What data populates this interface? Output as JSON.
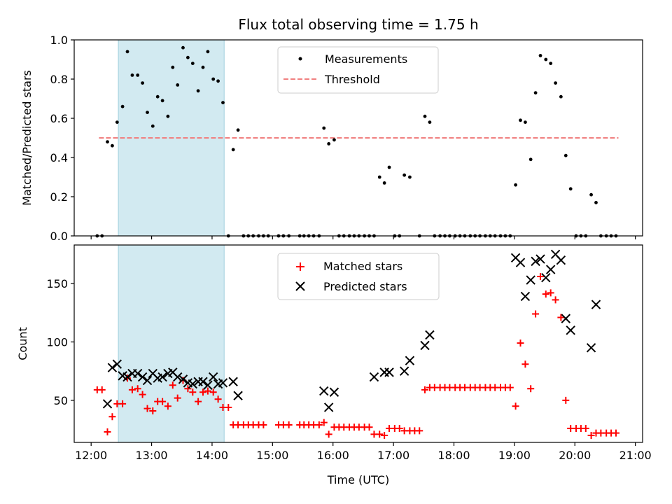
{
  "chart_data": [
    {
      "type": "scatter",
      "title": "Flux total observing time = 1.75 h",
      "ylabel": "Matched/Predicted stars",
      "xlabel": "",
      "x_unit": "hours (UTC)",
      "xlim": [
        11.72,
        21.12
      ],
      "ylim": [
        0,
        1.0
      ],
      "yticks": [
        "0.0",
        "0.2",
        "0.4",
        "0.6",
        "0.8",
        "1.0"
      ],
      "ytick_values": [
        0,
        0.2,
        0.4,
        0.6,
        0.8,
        1.0
      ],
      "xtick_values": [
        12,
        13,
        14,
        15,
        16,
        17,
        18,
        19,
        20,
        21
      ],
      "highlight_span": [
        12.45,
        14.2
      ],
      "highlight_color": "#add8e6",
      "legend": {
        "placement": "upper-center",
        "entries": [
          "Measurements",
          "Threshold"
        ]
      },
      "threshold": {
        "name": "Threshold",
        "value": 0.5,
        "x_range": [
          12.13,
          20.72
        ],
        "color": "#f08080",
        "style": "dashed"
      },
      "series": [
        {
          "name": "Measurements",
          "color": "#000000",
          "marker": "dot",
          "points": [
            [
              12.1,
              0
            ],
            [
              12.18,
              0
            ],
            [
              12.27,
              0.48
            ],
            [
              12.35,
              0.46
            ],
            [
              12.43,
              0.58
            ],
            [
              12.52,
              0.66
            ],
            [
              12.6,
              0.94
            ],
            [
              12.68,
              0.82
            ],
            [
              12.77,
              0.82
            ],
            [
              12.85,
              0.78
            ],
            [
              12.93,
              0.63
            ],
            [
              13.02,
              0.56
            ],
            [
              13.1,
              0.71
            ],
            [
              13.18,
              0.69
            ],
            [
              13.27,
              0.61
            ],
            [
              13.35,
              0.86
            ],
            [
              13.43,
              0.77
            ],
            [
              13.52,
              0.96
            ],
            [
              13.6,
              0.91
            ],
            [
              13.68,
              0.88
            ],
            [
              13.77,
              0.74
            ],
            [
              13.85,
              0.86
            ],
            [
              13.93,
              0.94
            ],
            [
              14.02,
              0.8
            ],
            [
              14.1,
              0.79
            ],
            [
              14.18,
              0.68
            ],
            [
              14.27,
              0
            ],
            [
              14.35,
              0.44
            ],
            [
              14.43,
              0.54
            ],
            [
              14.52,
              0
            ],
            [
              14.6,
              0
            ],
            [
              14.68,
              0
            ],
            [
              14.77,
              0
            ],
            [
              14.85,
              0
            ],
            [
              14.93,
              0
            ],
            [
              15.1,
              0
            ],
            [
              15.18,
              0
            ],
            [
              15.27,
              0
            ],
            [
              15.45,
              0
            ],
            [
              15.52,
              0
            ],
            [
              15.6,
              0
            ],
            [
              15.68,
              0
            ],
            [
              15.77,
              0
            ],
            [
              15.85,
              0.55
            ],
            [
              15.93,
              0.47
            ],
            [
              16.02,
              0.49
            ],
            [
              16.1,
              0
            ],
            [
              16.18,
              0
            ],
            [
              16.27,
              0
            ],
            [
              16.35,
              0
            ],
            [
              16.43,
              0
            ],
            [
              16.52,
              0
            ],
            [
              16.6,
              0
            ],
            [
              16.68,
              0
            ],
            [
              16.77,
              0.3
            ],
            [
              16.85,
              0.27
            ],
            [
              16.93,
              0.35
            ],
            [
              17.02,
              0
            ],
            [
              17.1,
              0
            ],
            [
              17.18,
              0.31
            ],
            [
              17.27,
              0.3
            ],
            [
              17.43,
              0
            ],
            [
              17.52,
              0.61
            ],
            [
              17.6,
              0.58
            ],
            [
              17.68,
              0
            ],
            [
              17.77,
              0
            ],
            [
              17.85,
              0
            ],
            [
              17.93,
              0
            ],
            [
              18.02,
              0
            ],
            [
              18.1,
              0
            ],
            [
              18.18,
              0
            ],
            [
              18.27,
              0
            ],
            [
              18.35,
              0
            ],
            [
              18.43,
              0
            ],
            [
              18.52,
              0
            ],
            [
              18.6,
              0
            ],
            [
              18.68,
              0
            ],
            [
              18.77,
              0
            ],
            [
              18.85,
              0
            ],
            [
              18.93,
              0
            ],
            [
              19.02,
              0.26
            ],
            [
              19.1,
              0.59
            ],
            [
              19.18,
              0.58
            ],
            [
              19.27,
              0.39
            ],
            [
              19.35,
              0.73
            ],
            [
              19.43,
              0.92
            ],
            [
              19.52,
              0.9
            ],
            [
              19.6,
              0.88
            ],
            [
              19.68,
              0.78
            ],
            [
              19.77,
              0.71
            ],
            [
              19.85,
              0.41
            ],
            [
              19.93,
              0.24
            ],
            [
              20.02,
              0
            ],
            [
              20.1,
              0
            ],
            [
              20.18,
              0
            ],
            [
              20.27,
              0.21
            ],
            [
              20.35,
              0.17
            ],
            [
              20.43,
              0
            ],
            [
              20.52,
              0
            ],
            [
              20.6,
              0
            ],
            [
              20.68,
              0
            ]
          ]
        }
      ]
    },
    {
      "type": "scatter",
      "title": "",
      "ylabel": "Count",
      "xlabel": "Time (UTC)",
      "x_unit": "hours (UTC)",
      "xlim": [
        11.72,
        21.12
      ],
      "ylim": [
        14,
        183
      ],
      "yticks": [
        "50",
        "100",
        "150"
      ],
      "ytick_values": [
        50,
        100,
        150
      ],
      "xticks": [
        "12:00",
        "13:00",
        "14:00",
        "15:00",
        "16:00",
        "17:00",
        "18:00",
        "19:00",
        "20:00",
        "21:00"
      ],
      "xtick_values": [
        12,
        13,
        14,
        15,
        16,
        17,
        18,
        19,
        20,
        21
      ],
      "highlight_span": [
        12.45,
        14.2
      ],
      "highlight_color": "#add8e6",
      "legend": {
        "placement": "upper-center",
        "entries": [
          "Matched stars",
          "Predicted stars"
        ]
      },
      "series": [
        {
          "name": "Matched stars",
          "color": "#ff0000",
          "marker": "plus",
          "points": [
            [
              12.1,
              59
            ],
            [
              12.18,
              59
            ],
            [
              12.27,
              23
            ],
            [
              12.35,
              36
            ],
            [
              12.43,
              47
            ],
            [
              12.52,
              47
            ],
            [
              12.6,
              69
            ],
            [
              12.68,
              59
            ],
            [
              12.77,
              60
            ],
            [
              12.85,
              55
            ],
            [
              12.93,
              43
            ],
            [
              13.02,
              41
            ],
            [
              13.1,
              49
            ],
            [
              13.18,
              49
            ],
            [
              13.27,
              45
            ],
            [
              13.35,
              63
            ],
            [
              13.43,
              52
            ],
            [
              13.52,
              67
            ],
            [
              13.6,
              60
            ],
            [
              13.68,
              57
            ],
            [
              13.77,
              49
            ],
            [
              13.85,
              57
            ],
            [
              13.93,
              58
            ],
            [
              14.02,
              57
            ],
            [
              14.1,
              51
            ],
            [
              14.18,
              44
            ],
            [
              14.27,
              44
            ],
            [
              14.35,
              29
            ],
            [
              14.43,
              29
            ],
            [
              14.52,
              29
            ],
            [
              14.6,
              29
            ],
            [
              14.68,
              29
            ],
            [
              14.77,
              29
            ],
            [
              14.85,
              29
            ],
            [
              15.1,
              29
            ],
            [
              15.18,
              29
            ],
            [
              15.27,
              29
            ],
            [
              15.45,
              29
            ],
            [
              15.52,
              29
            ],
            [
              15.6,
              29
            ],
            [
              15.68,
              29
            ],
            [
              15.77,
              29
            ],
            [
              15.85,
              31
            ],
            [
              15.93,
              21
            ],
            [
              16.02,
              27
            ],
            [
              16.1,
              27
            ],
            [
              16.18,
              27
            ],
            [
              16.27,
              27
            ],
            [
              16.35,
              27
            ],
            [
              16.43,
              27
            ],
            [
              16.52,
              27
            ],
            [
              16.6,
              27
            ],
            [
              16.68,
              21
            ],
            [
              16.77,
              21
            ],
            [
              16.85,
              20
            ],
            [
              16.93,
              26
            ],
            [
              17.02,
              26
            ],
            [
              17.1,
              26
            ],
            [
              17.18,
              24
            ],
            [
              17.27,
              24
            ],
            [
              17.35,
              24
            ],
            [
              17.43,
              24
            ],
            [
              17.52,
              59
            ],
            [
              17.6,
              61
            ],
            [
              17.68,
              61
            ],
            [
              17.77,
              61
            ],
            [
              17.85,
              61
            ],
            [
              17.93,
              61
            ],
            [
              18.02,
              61
            ],
            [
              18.1,
              61
            ],
            [
              18.18,
              61
            ],
            [
              18.27,
              61
            ],
            [
              18.35,
              61
            ],
            [
              18.43,
              61
            ],
            [
              18.52,
              61
            ],
            [
              18.6,
              61
            ],
            [
              18.68,
              61
            ],
            [
              18.77,
              61
            ],
            [
              18.85,
              61
            ],
            [
              18.93,
              61
            ],
            [
              19.02,
              45
            ],
            [
              19.1,
              99
            ],
            [
              19.18,
              81
            ],
            [
              19.27,
              60
            ],
            [
              19.35,
              124
            ],
            [
              19.43,
              156
            ],
            [
              19.52,
              141
            ],
            [
              19.6,
              142
            ],
            [
              19.68,
              136
            ],
            [
              19.77,
              121
            ],
            [
              19.85,
              50
            ],
            [
              19.93,
              26
            ],
            [
              20.02,
              26
            ],
            [
              20.1,
              26
            ],
            [
              20.18,
              26
            ],
            [
              20.27,
              20
            ],
            [
              20.35,
              22
            ],
            [
              20.43,
              22
            ],
            [
              20.52,
              22
            ],
            [
              20.6,
              22
            ],
            [
              20.68,
              22
            ]
          ]
        },
        {
          "name": "Predicted stars",
          "color": "#000000",
          "marker": "x",
          "points": [
            [
              12.27,
              47
            ],
            [
              12.35,
              78
            ],
            [
              12.43,
              81
            ],
            [
              12.52,
              71
            ],
            [
              12.6,
              70
            ],
            [
              12.68,
              73
            ],
            [
              12.77,
              73
            ],
            [
              12.85,
              70
            ],
            [
              12.93,
              67
            ],
            [
              13.02,
              73
            ],
            [
              13.1,
              69
            ],
            [
              13.18,
              70
            ],
            [
              13.27,
              73
            ],
            [
              13.35,
              74
            ],
            [
              13.43,
              70
            ],
            [
              13.52,
              68
            ],
            [
              13.6,
              65
            ],
            [
              13.68,
              64
            ],
            [
              13.77,
              66
            ],
            [
              13.85,
              66
            ],
            [
              13.93,
              63
            ],
            [
              14.02,
              70
            ],
            [
              14.1,
              64
            ],
            [
              14.18,
              65
            ],
            [
              14.35,
              66
            ],
            [
              14.43,
              54
            ],
            [
              15.85,
              58
            ],
            [
              15.93,
              44
            ],
            [
              16.02,
              57
            ],
            [
              16.68,
              70
            ],
            [
              16.85,
              74
            ],
            [
              16.93,
              74
            ],
            [
              17.18,
              75
            ],
            [
              17.27,
              84
            ],
            [
              17.52,
              97
            ],
            [
              17.6,
              106
            ],
            [
              19.02,
              172
            ],
            [
              19.1,
              168
            ],
            [
              19.18,
              139
            ],
            [
              19.27,
              153
            ],
            [
              19.35,
              169
            ],
            [
              19.43,
              171
            ],
            [
              19.52,
              155
            ],
            [
              19.6,
              162
            ],
            [
              19.68,
              175
            ],
            [
              19.77,
              170
            ],
            [
              19.85,
              120
            ],
            [
              19.93,
              110
            ],
            [
              20.27,
              95
            ],
            [
              20.35,
              132
            ]
          ]
        }
      ]
    }
  ]
}
